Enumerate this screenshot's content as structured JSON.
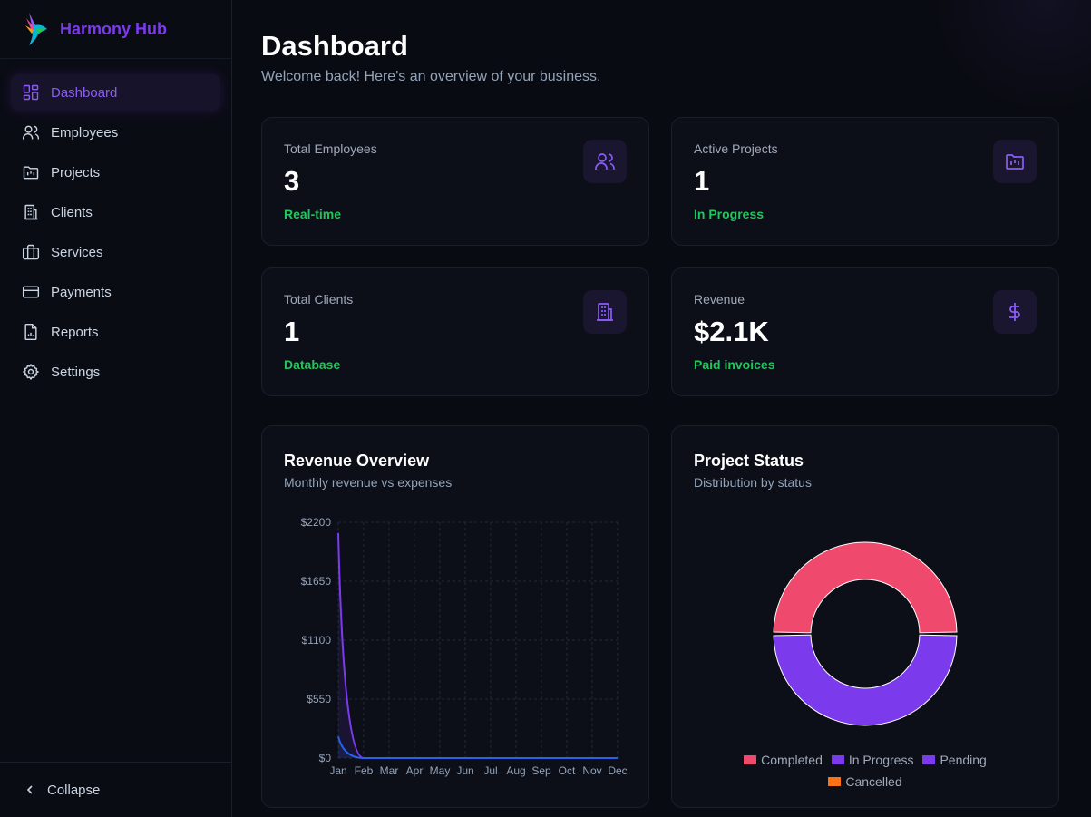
{
  "brand": {
    "name": "Harmony Hub"
  },
  "nav": [
    {
      "label": "Dashboard",
      "icon": "dashboard-icon",
      "active": true
    },
    {
      "label": "Employees",
      "icon": "users-icon"
    },
    {
      "label": "Projects",
      "icon": "folder-icon"
    },
    {
      "label": "Clients",
      "icon": "building-icon"
    },
    {
      "label": "Services",
      "icon": "briefcase-icon"
    },
    {
      "label": "Payments",
      "icon": "credit-card-icon"
    },
    {
      "label": "Reports",
      "icon": "report-icon"
    },
    {
      "label": "Settings",
      "icon": "gear-icon"
    }
  ],
  "collapse_label": "Collapse",
  "header": {
    "title": "Dashboard",
    "subtitle": "Welcome back! Here's an overview of your business."
  },
  "stats": [
    {
      "label": "Total Employees",
      "value": "3",
      "note": "Real-time",
      "icon": "users-icon"
    },
    {
      "label": "Active Projects",
      "value": "1",
      "note": "In Progress",
      "icon": "folder-icon"
    },
    {
      "label": "Total Clients",
      "value": "1",
      "note": "Database",
      "icon": "building-icon"
    },
    {
      "label": "Revenue",
      "value": "$2.1K",
      "note": "Paid invoices",
      "icon": "dollar-icon"
    }
  ],
  "revenue_panel": {
    "title": "Revenue Overview",
    "subtitle": "Monthly revenue vs expenses"
  },
  "status_panel": {
    "title": "Project Status",
    "subtitle": "Distribution by status"
  },
  "colors": {
    "accent": "#7c3aed",
    "revenue": "#7c3aed",
    "expenses": "#2563eb",
    "positive": "#22c55e",
    "completed": "#ef4a6e",
    "in_progress": "#7c3aed",
    "pending": "#7c3aed",
    "cancelled": "#f97316"
  },
  "chart_data": [
    {
      "type": "area",
      "categories": [
        "Jan",
        "Feb",
        "Mar",
        "Apr",
        "May",
        "Jun",
        "Jul",
        "Aug",
        "Sep",
        "Oct",
        "Nov",
        "Dec"
      ],
      "series": [
        {
          "values": [
            2100,
            0,
            0,
            0,
            0,
            0,
            0,
            0,
            0,
            0,
            0,
            0
          ],
          "color": "#7c3aed"
        },
        {
          "values": [
            200,
            0,
            0,
            0,
            0,
            0,
            0,
            0,
            0,
            0,
            0,
            0
          ],
          "color": "#2563eb"
        }
      ],
      "yticks": [
        "$0",
        "$550",
        "$1100",
        "$1650",
        "$2200"
      ],
      "ylim": [
        0,
        2200
      ],
      "grid": true
    },
    {
      "type": "pie",
      "donut": true,
      "labels": [
        "Completed",
        "In Progress",
        "Pending",
        "Cancelled"
      ],
      "values": [
        1,
        1,
        0,
        0
      ],
      "colors": [
        "#ef4a6e",
        "#7c3aed",
        "#7c3aed",
        "#f97316"
      ],
      "legend_position": "bottom"
    }
  ]
}
